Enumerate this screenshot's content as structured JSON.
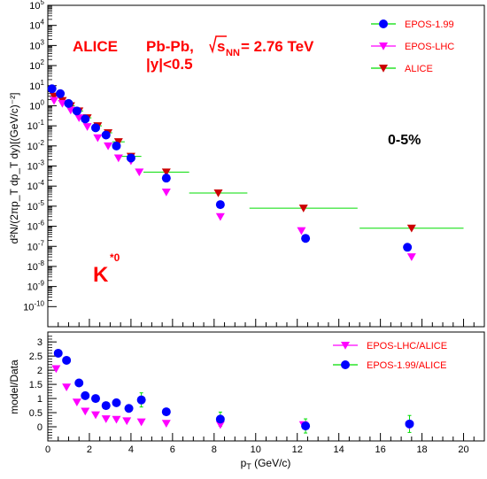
{
  "chart_data": [
    {
      "type": "scatter",
      "panel": "spectrum",
      "ylabel": "d²N/(2πp_T dp_T dy)[(GeV/c)⁻²]",
      "yscale": "log",
      "xlim": [
        0,
        21
      ],
      "ylim_exponent": [
        -11,
        5
      ],
      "y_tick_exponents": [
        -10,
        -9,
        -8,
        -7,
        -6,
        -5,
        -4,
        -3,
        -2,
        -1,
        0,
        1,
        2,
        3,
        4,
        5
      ],
      "annotations": {
        "experiment": "ALICE",
        "system": "Pb-Pb,",
        "energy_sqrt": "s",
        "energy_sub": "NN",
        "energy_value": " = 2.76 TeV",
        "rapidity": "|y|<0.5",
        "centrality": "0-5%",
        "particle": "K",
        "particle_sup": "*0"
      },
      "legend": [
        {
          "label": "EPOS-1.99",
          "marker": "circle",
          "color": "#0000ff"
        },
        {
          "label": "EPOS-LHC",
          "marker": "triangle-down",
          "color": "#ff00ff"
        },
        {
          "label": "ALICE",
          "marker": "triangle-down",
          "color": "#cc0000"
        }
      ],
      "series": [
        {
          "name": "ALICE",
          "marker": "triangle-down",
          "color": "#cc0000",
          "points": [
            {
              "x": 0.3,
              "y": 3,
              "xerr": 0.1
            },
            {
              "x": 0.7,
              "y": 1.8,
              "xerr": 0.2
            },
            {
              "x": 1.1,
              "y": 1.0,
              "xerr": 0.2
            },
            {
              "x": 1.5,
              "y": 0.55,
              "xerr": 0.2
            },
            {
              "x": 1.9,
              "y": 0.25,
              "xerr": 0.2
            },
            {
              "x": 2.4,
              "y": 0.1,
              "xerr": 0.2
            },
            {
              "x": 2.9,
              "y": 0.045,
              "xerr": 0.2
            },
            {
              "x": 3.4,
              "y": 0.016,
              "xerr": 0.3
            },
            {
              "x": 4.0,
              "y": 0.003,
              "xerr": 0.5
            },
            {
              "x": 5.7,
              "y": 0.0005,
              "xerr": 1.1
            },
            {
              "x": 8.2,
              "y": 4.5e-05,
              "xerr": 1.4
            },
            {
              "x": 12.3,
              "y": 8e-06,
              "xerr": 2.6
            },
            {
              "x": 17.5,
              "y": 8e-07,
              "xerr": 2.5
            }
          ]
        },
        {
          "name": "EPOS-1.99",
          "marker": "circle",
          "color": "#0000ff",
          "points": [
            {
              "x": 0.2,
              "y": 7
            },
            {
              "x": 0.6,
              "y": 4
            },
            {
              "x": 1.0,
              "y": 1.3
            },
            {
              "x": 1.4,
              "y": 0.55
            },
            {
              "x": 1.8,
              "y": 0.22
            },
            {
              "x": 2.3,
              "y": 0.08
            },
            {
              "x": 2.8,
              "y": 0.035
            },
            {
              "x": 3.3,
              "y": 0.01
            },
            {
              "x": 4.0,
              "y": 0.0025
            },
            {
              "x": 5.7,
              "y": 0.00025
            },
            {
              "x": 8.3,
              "y": 1.2e-05
            },
            {
              "x": 12.4,
              "y": 2.5e-07
            },
            {
              "x": 17.3,
              "y": 9e-08
            }
          ]
        },
        {
          "name": "EPOS-LHC",
          "marker": "triangle-down",
          "color": "#ff00ff",
          "points": [
            {
              "x": 0.3,
              "y": 1.8
            },
            {
              "x": 0.7,
              "y": 1.3
            },
            {
              "x": 1.1,
              "y": 0.6
            },
            {
              "x": 1.5,
              "y": 0.25
            },
            {
              "x": 1.9,
              "y": 0.09
            },
            {
              "x": 2.4,
              "y": 0.025
            },
            {
              "x": 2.9,
              "y": 0.01
            },
            {
              "x": 3.4,
              "y": 0.0025
            },
            {
              "x": 4.0,
              "y": 0.0018
            },
            {
              "x": 4.4,
              "y": 0.0005
            },
            {
              "x": 5.7,
              "y": 5e-05
            },
            {
              "x": 8.3,
              "y": 3e-06
            },
            {
              "x": 12.2,
              "y": 6e-07
            },
            {
              "x": 17.5,
              "y": 3e-08
            }
          ]
        }
      ]
    },
    {
      "type": "scatter",
      "panel": "ratio",
      "xlabel": "p_T (GeV/c)",
      "ylabel": "model/Data",
      "xlim": [
        0,
        21
      ],
      "ylim": [
        -0.5,
        3.35
      ],
      "x_ticks": [
        0,
        2,
        4,
        6,
        8,
        10,
        12,
        14,
        16,
        18,
        20
      ],
      "y_ticks": [
        0,
        0.5,
        1,
        1.5,
        2,
        2.5,
        3
      ],
      "x_tick_labels": [
        "0",
        "2",
        "4",
        "6",
        "8",
        "10",
        "12",
        "14",
        "16",
        "18",
        "20"
      ],
      "y_tick_labels": [
        "0",
        "0.5",
        "1",
        "1.5",
        "2",
        "2.5",
        "3"
      ],
      "legend": [
        {
          "label": "EPOS-LHC/ALICE",
          "marker": "triangle-down",
          "color": "#ff00ff"
        },
        {
          "label": "EPOS-1.99/ALICE",
          "marker": "circle",
          "color": "#0000ff"
        }
      ],
      "series": [
        {
          "name": "EPOS-LHC/ALICE",
          "marker": "triangle-down",
          "color": "#ff00ff",
          "points": [
            {
              "x": 0.4,
              "y": 2.05
            },
            {
              "x": 0.9,
              "y": 1.4
            },
            {
              "x": 1.4,
              "y": 0.87
            },
            {
              "x": 1.8,
              "y": 0.55
            },
            {
              "x": 2.3,
              "y": 0.42
            },
            {
              "x": 2.8,
              "y": 0.28
            },
            {
              "x": 3.3,
              "y": 0.26
            },
            {
              "x": 3.8,
              "y": 0.21
            },
            {
              "x": 4.5,
              "y": 0.17
            },
            {
              "x": 5.7,
              "y": 0.12
            },
            {
              "x": 8.3,
              "y": 0.07
            },
            {
              "x": 12.3,
              "y": 0.07
            },
            {
              "x": 17.4,
              "y": 0.05
            }
          ]
        },
        {
          "name": "EPOS-1.99/ALICE",
          "marker": "circle",
          "color": "#0000ff",
          "points": [
            {
              "x": 0.5,
              "y": 2.6,
              "yerr": 0.05
            },
            {
              "x": 0.9,
              "y": 2.35,
              "yerr": 0.05
            },
            {
              "x": 1.5,
              "y": 1.55,
              "yerr": 0.05
            },
            {
              "x": 1.8,
              "y": 1.1,
              "yerr": 0.05
            },
            {
              "x": 2.3,
              "y": 1.0,
              "yerr": 0.05
            },
            {
              "x": 2.8,
              "y": 0.75,
              "yerr": 0.05
            },
            {
              "x": 3.3,
              "y": 0.85,
              "yerr": 0.05
            },
            {
              "x": 3.9,
              "y": 0.65,
              "yerr": 0.1
            },
            {
              "x": 4.5,
              "y": 0.95,
              "yerr": 0.25
            },
            {
              "x": 5.7,
              "y": 0.53,
              "yerr": 0.12
            },
            {
              "x": 8.3,
              "y": 0.27,
              "yerr": 0.25
            },
            {
              "x": 12.4,
              "y": 0.03,
              "yerr": 0.25
            },
            {
              "x": 17.4,
              "y": 0.1,
              "yerr": 0.3
            }
          ]
        }
      ]
    }
  ]
}
